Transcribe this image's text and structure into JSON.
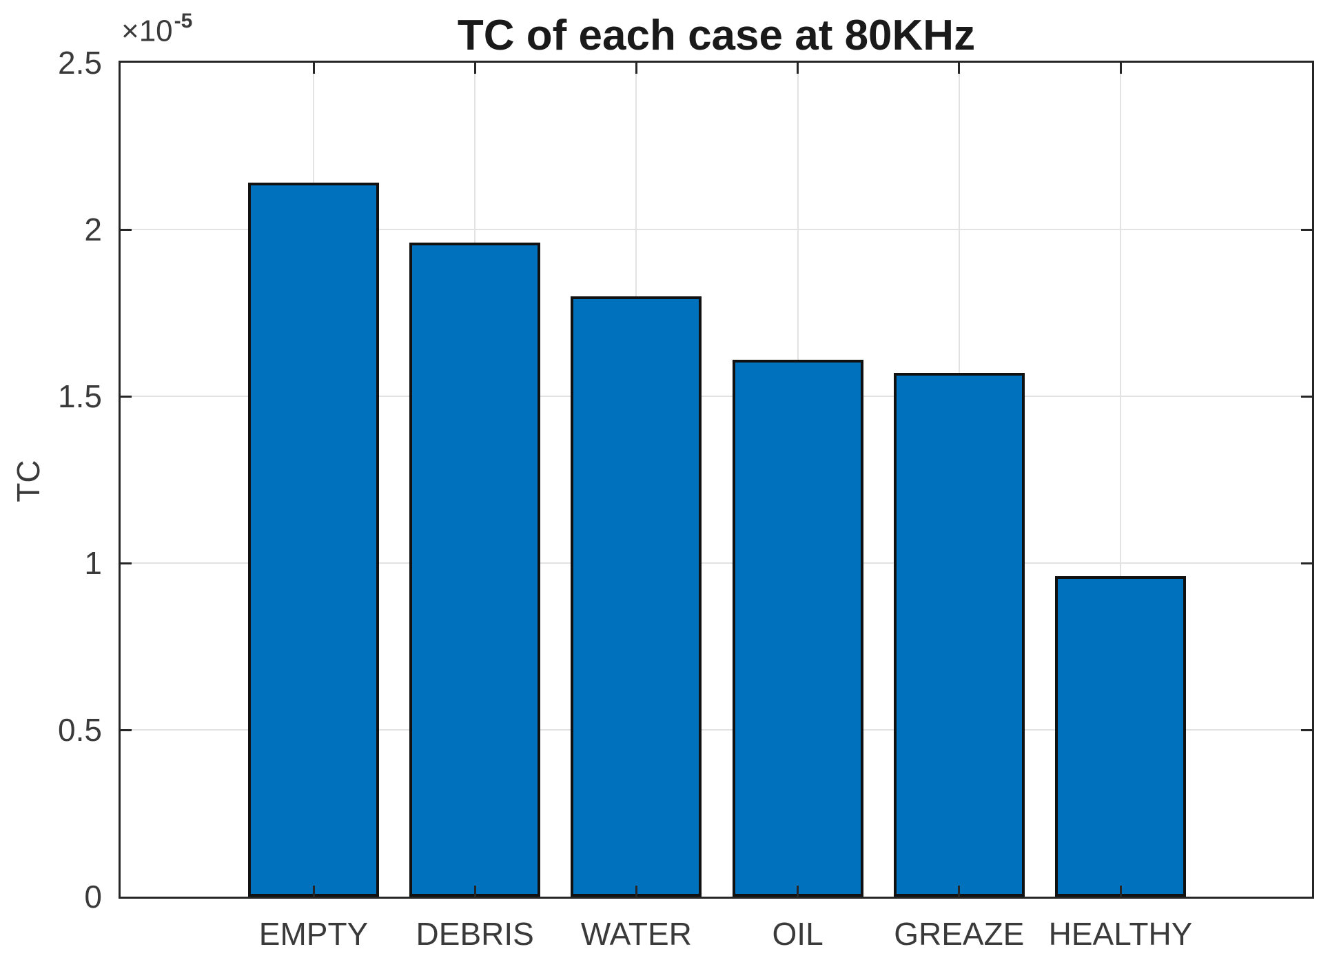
{
  "figure": {
    "y_axis": {
      "multiplier_base": "×10",
      "multiplier_exponent": "-5",
      "tick_labels": [
        "0",
        "0.5",
        "1",
        "1.5",
        "2",
        "2.5"
      ]
    }
  },
  "chart_data": {
    "type": "bar",
    "title": "TC of each case at 80KHz",
    "categories": [
      "EMPTY",
      "DEBRIS",
      "WATER",
      "OIL",
      "GREAZE",
      "HEALTHY"
    ],
    "values": [
      2.14,
      1.96,
      1.8,
      1.61,
      1.57,
      0.96
    ],
    "value_unit": "×10^-5",
    "values_absolute": [
      2.14e-05,
      1.96e-05,
      1.8e-05,
      1.61e-05,
      1.57e-05,
      9.6e-06
    ],
    "xlabel": "",
    "ylabel": "TC",
    "ylim": [
      0,
      2.5
    ],
    "yticks": [
      0,
      0.5,
      1,
      1.5,
      2,
      2.5
    ],
    "grid": true,
    "legend": null,
    "bar_color": "#0072BD",
    "bar_edge_color": "#111111",
    "axis_color": "#262626",
    "grid_color": "#e2e2e2"
  }
}
